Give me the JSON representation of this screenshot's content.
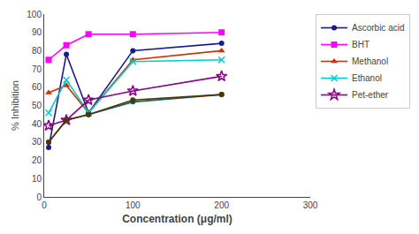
{
  "chart_data": {
    "type": "line",
    "x": [
      5,
      25,
      50,
      100,
      200
    ],
    "series": [
      {
        "name": "Ascorbic acid",
        "color": "#1a1a8c",
        "marker": "circle",
        "values": [
          27,
          78,
          46,
          80,
          84
        ]
      },
      {
        "name": "BHT",
        "color": "#ff00ff",
        "marker": "square",
        "values": [
          75,
          83,
          89,
          89,
          90
        ]
      },
      {
        "name": "Methanol",
        "color": "#cc3300",
        "marker": "triangle",
        "values": [
          57,
          61,
          46,
          75,
          80
        ]
      },
      {
        "name": "Ethanol",
        "color": "#00cccc",
        "marker": "x",
        "values": [
          46,
          64,
          46,
          74,
          75
        ]
      },
      {
        "name": "Pet-ether",
        "color": "#880088",
        "marker": "star",
        "values": [
          39,
          42,
          53,
          58,
          66
        ]
      },
      {
        "color": "#006666",
        "marker": "circle",
        "values": [
          30,
          42,
          45,
          52,
          56
        ]
      },
      {
        "color": "#553300",
        "marker": "circle",
        "values": [
          30,
          42,
          45,
          53,
          56
        ]
      }
    ],
    "xlabel": "Concentration (μg/ml)",
    "ylabel": "% Inhibition",
    "xlim": [
      0,
      300
    ],
    "ylim": [
      0,
      100
    ],
    "xticks": [
      0,
      100,
      200,
      300
    ],
    "yticks": [
      0,
      10,
      20,
      30,
      40,
      50,
      60,
      70,
      80,
      90,
      100
    ],
    "grid": false,
    "legend": "right"
  }
}
